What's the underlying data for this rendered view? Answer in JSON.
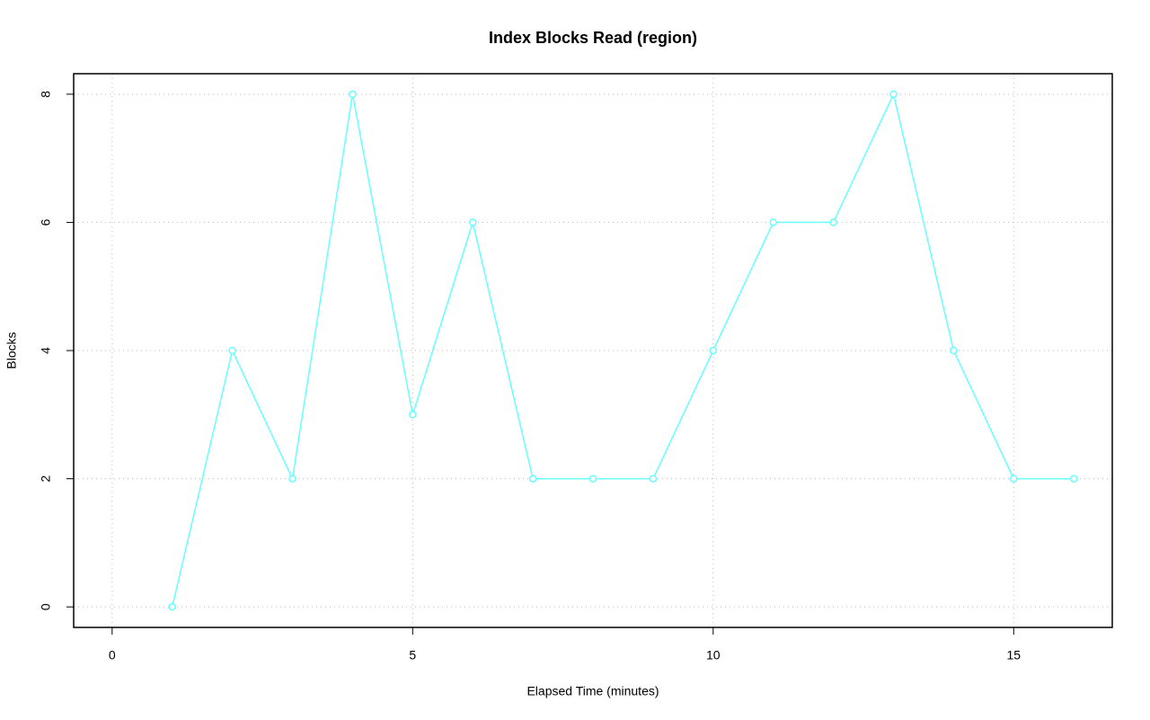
{
  "chart_data": {
    "type": "line",
    "title": "Index Blocks Read (region)",
    "xlabel": "Elapsed Time (minutes)",
    "ylabel": "Blocks",
    "x": [
      1,
      2,
      3,
      4,
      5,
      6,
      7,
      8,
      9,
      10,
      11,
      12,
      13,
      14,
      15,
      16
    ],
    "values": [
      0,
      4,
      2,
      8,
      3,
      6,
      2,
      2,
      2,
      4,
      6,
      6,
      8,
      4,
      2,
      2
    ],
    "color": "#66ffff",
    "xlim": [
      -0.64,
      16.64
    ],
    "ylim": [
      -0.32,
      8.32
    ],
    "xticks": [
      0,
      5,
      10,
      15
    ],
    "yticks": [
      0,
      2,
      4,
      6,
      8
    ],
    "grid": true
  }
}
